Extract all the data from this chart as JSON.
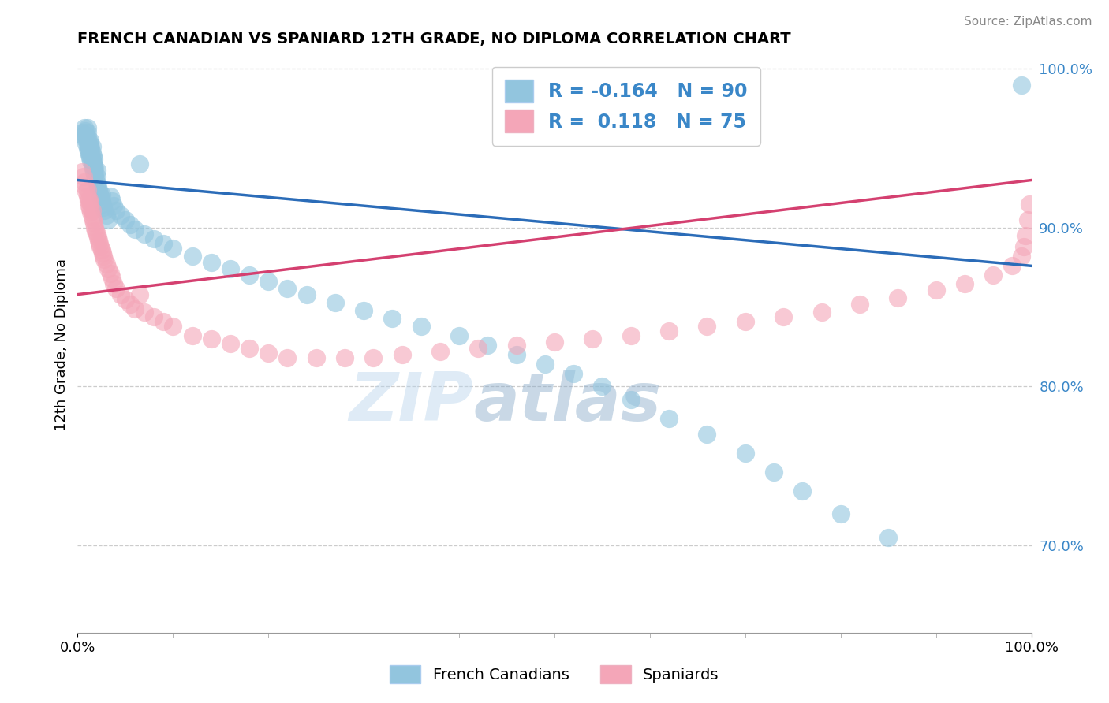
{
  "title": "FRENCH CANADIAN VS SPANIARD 12TH GRADE, NO DIPLOMA CORRELATION CHART",
  "source": "Source: ZipAtlas.com",
  "ylabel": "12th Grade, No Diploma",
  "xlim": [
    0.0,
    1.0
  ],
  "ylim": [
    0.645,
    1.008
  ],
  "yticks": [
    0.7,
    0.8,
    0.9,
    1.0
  ],
  "ytick_labels": [
    "70.0%",
    "80.0%",
    "90.0%",
    "100.0%"
  ],
  "xtick_labels": [
    "0.0%",
    "100.0%"
  ],
  "blue_R": -0.164,
  "blue_N": 90,
  "pink_R": 0.118,
  "pink_N": 75,
  "blue_color": "#92C5DE",
  "pink_color": "#F4A6B8",
  "blue_line_color": "#2b6cb8",
  "pink_line_color": "#d44070",
  "tick_color": "#3a87c8",
  "legend_blue_label": "French Canadians",
  "legend_pink_label": "Spaniards",
  "watermark_zip": "ZIP",
  "watermark_atlas": "atlas",
  "blue_line_start_y": 0.93,
  "blue_line_end_y": 0.876,
  "pink_line_start_y": 0.858,
  "pink_line_end_y": 0.93,
  "blue_scatter_x": [
    0.005,
    0.006,
    0.007,
    0.008,
    0.008,
    0.009,
    0.009,
    0.01,
    0.01,
    0.01,
    0.01,
    0.01,
    0.011,
    0.011,
    0.012,
    0.012,
    0.012,
    0.013,
    0.013,
    0.013,
    0.013,
    0.014,
    0.014,
    0.014,
    0.015,
    0.015,
    0.015,
    0.015,
    0.016,
    0.016,
    0.016,
    0.017,
    0.017,
    0.017,
    0.018,
    0.018,
    0.019,
    0.02,
    0.02,
    0.02,
    0.021,
    0.022,
    0.023,
    0.024,
    0.025,
    0.025,
    0.026,
    0.027,
    0.028,
    0.03,
    0.032,
    0.034,
    0.036,
    0.038,
    0.04,
    0.045,
    0.05,
    0.055,
    0.06,
    0.065,
    0.07,
    0.08,
    0.09,
    0.1,
    0.12,
    0.14,
    0.16,
    0.18,
    0.2,
    0.22,
    0.24,
    0.27,
    0.3,
    0.33,
    0.36,
    0.4,
    0.43,
    0.46,
    0.49,
    0.52,
    0.55,
    0.58,
    0.62,
    0.66,
    0.7,
    0.73,
    0.76,
    0.8,
    0.85,
    0.99
  ],
  "blue_scatter_y": [
    0.96,
    0.958,
    0.963,
    0.956,
    0.961,
    0.953,
    0.958,
    0.95,
    0.954,
    0.957,
    0.96,
    0.963,
    0.948,
    0.952,
    0.946,
    0.95,
    0.954,
    0.944,
    0.947,
    0.951,
    0.955,
    0.942,
    0.946,
    0.95,
    0.939,
    0.943,
    0.947,
    0.951,
    0.937,
    0.941,
    0.945,
    0.935,
    0.939,
    0.943,
    0.933,
    0.937,
    0.931,
    0.928,
    0.932,
    0.936,
    0.926,
    0.924,
    0.922,
    0.92,
    0.917,
    0.921,
    0.915,
    0.913,
    0.911,
    0.908,
    0.905,
    0.92,
    0.917,
    0.914,
    0.911,
    0.908,
    0.905,
    0.902,
    0.899,
    0.94,
    0.896,
    0.893,
    0.89,
    0.887,
    0.882,
    0.878,
    0.874,
    0.87,
    0.866,
    0.862,
    0.858,
    0.853,
    0.848,
    0.843,
    0.838,
    0.832,
    0.826,
    0.82,
    0.814,
    0.808,
    0.8,
    0.792,
    0.78,
    0.77,
    0.758,
    0.746,
    0.734,
    0.72,
    0.705,
    0.99
  ],
  "pink_scatter_x": [
    0.005,
    0.006,
    0.007,
    0.008,
    0.009,
    0.01,
    0.01,
    0.011,
    0.012,
    0.012,
    0.013,
    0.013,
    0.014,
    0.015,
    0.015,
    0.016,
    0.017,
    0.018,
    0.019,
    0.02,
    0.021,
    0.022,
    0.023,
    0.024,
    0.025,
    0.026,
    0.027,
    0.028,
    0.03,
    0.032,
    0.034,
    0.036,
    0.038,
    0.04,
    0.045,
    0.05,
    0.055,
    0.06,
    0.065,
    0.07,
    0.08,
    0.09,
    0.1,
    0.12,
    0.14,
    0.16,
    0.18,
    0.2,
    0.22,
    0.25,
    0.28,
    0.31,
    0.34,
    0.38,
    0.42,
    0.46,
    0.5,
    0.54,
    0.58,
    0.62,
    0.66,
    0.7,
    0.74,
    0.78,
    0.82,
    0.86,
    0.9,
    0.93,
    0.96,
    0.98,
    0.99,
    0.992,
    0.994,
    0.996,
    0.998
  ],
  "pink_scatter_y": [
    0.935,
    0.932,
    0.929,
    0.926,
    0.923,
    0.92,
    0.924,
    0.917,
    0.914,
    0.918,
    0.912,
    0.916,
    0.91,
    0.907,
    0.911,
    0.905,
    0.903,
    0.9,
    0.898,
    0.896,
    0.894,
    0.892,
    0.89,
    0.888,
    0.886,
    0.884,
    0.882,
    0.88,
    0.877,
    0.874,
    0.871,
    0.868,
    0.865,
    0.862,
    0.858,
    0.855,
    0.852,
    0.849,
    0.858,
    0.847,
    0.844,
    0.841,
    0.838,
    0.832,
    0.83,
    0.827,
    0.824,
    0.821,
    0.818,
    0.818,
    0.818,
    0.818,
    0.82,
    0.822,
    0.824,
    0.826,
    0.828,
    0.83,
    0.832,
    0.835,
    0.838,
    0.841,
    0.844,
    0.847,
    0.852,
    0.856,
    0.861,
    0.865,
    0.87,
    0.876,
    0.882,
    0.888,
    0.895,
    0.905,
    0.915
  ]
}
